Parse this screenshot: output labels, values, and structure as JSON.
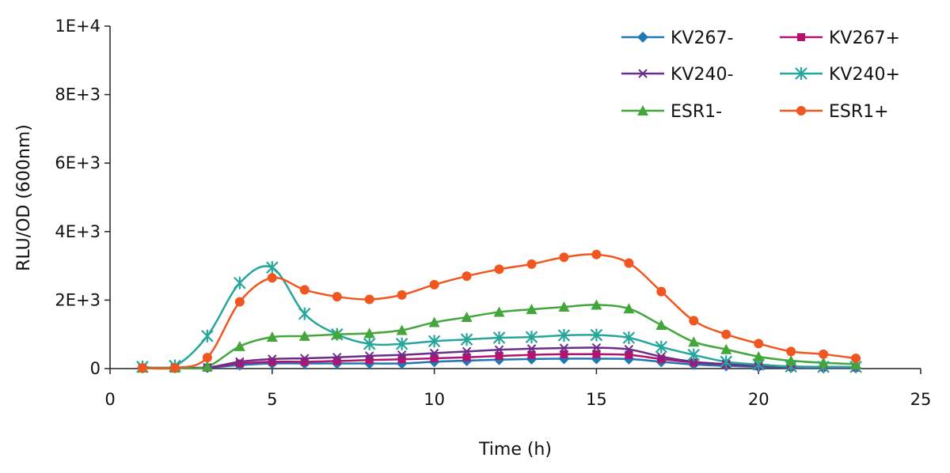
{
  "chart_data": {
    "type": "line",
    "title": "",
    "xlabel": "Time (h)",
    "ylabel": "RLU/OD (600nm)",
    "xlim": [
      0,
      25
    ],
    "ylim": [
      0,
      10000
    ],
    "x_ticks": [
      0,
      5,
      10,
      15,
      20,
      25
    ],
    "x_tick_labels": [
      "0",
      "5",
      "10",
      "15",
      "20",
      "25"
    ],
    "y_ticks": [
      0,
      2000,
      4000,
      6000,
      8000,
      10000
    ],
    "y_tick_labels": [
      "0",
      "2E+3",
      "4E+3",
      "6E+3",
      "8E+3",
      "1E+4"
    ],
    "grid": false,
    "legend_position": "top-right",
    "x": [
      1,
      2,
      3,
      4,
      5,
      6,
      7,
      8,
      9,
      10,
      11,
      12,
      13,
      14,
      15,
      16,
      17,
      18,
      19,
      20,
      21,
      22,
      23
    ],
    "series": [
      {
        "name": "KV267-",
        "color": "#1f77b4",
        "marker": "diamond",
        "values": [
          20,
          20,
          30,
          100,
          150,
          150,
          150,
          150,
          150,
          200,
          230,
          260,
          280,
          290,
          290,
          280,
          200,
          120,
          80,
          50,
          30,
          20,
          20
        ]
      },
      {
        "name": "KV267+",
        "color": "#b5126f",
        "marker": "square",
        "values": [
          20,
          20,
          30,
          150,
          200,
          200,
          220,
          250,
          270,
          300,
          330,
          370,
          400,
          420,
          420,
          400,
          280,
          180,
          120,
          80,
          50,
          40,
          30
        ]
      },
      {
        "name": "KV240-",
        "color": "#6a2d8a",
        "marker": "x",
        "values": [
          20,
          20,
          30,
          200,
          280,
          300,
          330,
          370,
          400,
          450,
          500,
          550,
          580,
          600,
          610,
          560,
          350,
          200,
          130,
          80,
          60,
          50,
          40
        ]
      },
      {
        "name": "KV240+",
        "color": "#26a69a",
        "marker": "asterisk",
        "values": [
          50,
          80,
          950,
          2500,
          2950,
          1600,
          1000,
          720,
          720,
          800,
          850,
          900,
          920,
          970,
          980,
          900,
          630,
          400,
          200,
          120,
          60,
          50,
          50
        ]
      },
      {
        "name": "ESR1-",
        "color": "#43a63a",
        "marker": "triangle",
        "values": [
          20,
          20,
          60,
          650,
          920,
          950,
          1000,
          1030,
          1120,
          1350,
          1500,
          1650,
          1730,
          1800,
          1860,
          1750,
          1270,
          780,
          560,
          350,
          230,
          170,
          130
        ]
      },
      {
        "name": "ESR1+",
        "color": "#f0561f",
        "marker": "circle",
        "values": [
          20,
          20,
          320,
          1950,
          2650,
          2300,
          2100,
          2020,
          2150,
          2450,
          2700,
          2900,
          3050,
          3250,
          3330,
          3080,
          2250,
          1400,
          1000,
          730,
          500,
          420,
          300
        ]
      }
    ]
  }
}
